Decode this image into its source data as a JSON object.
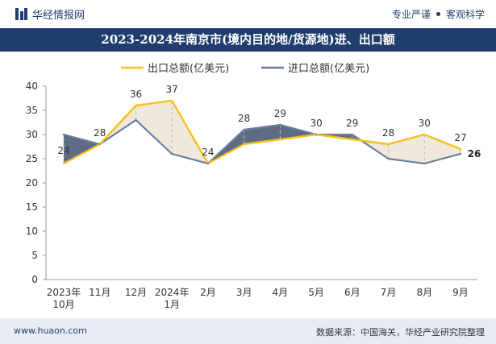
{
  "header": {
    "brand": "华经情报网",
    "tagline_left": "专业严谨",
    "tagline_right": "客观科学"
  },
  "title": "2023-2024年南京市(境内目的地/货源地)进、出口额",
  "footer": {
    "url": "www.huaon.com",
    "source": "数据来源：中国海关，华经产业研究院整理"
  },
  "colors": {
    "export": "#f5c11a",
    "import": "#6b7d9b",
    "navy": "#1f3e6e",
    "fill_dark": "#5e6b85",
    "fill_light": "#efe9dc"
  },
  "chart_data": {
    "type": "line",
    "categories": [
      "2023年\n10月",
      "11月",
      "12月",
      "2024年\n1月",
      "2月",
      "3月",
      "4月",
      "5月",
      "6月",
      "7月",
      "8月",
      "9月"
    ],
    "series": [
      {
        "name": "出口总额(亿美元)",
        "values": [
          24,
          28,
          36,
          37,
          24,
          28,
          29,
          30,
          29,
          28,
          30,
          27
        ]
      },
      {
        "name": "进口总额(亿美元)",
        "values": [
          30,
          28,
          33,
          26,
          24,
          31,
          32,
          30,
          30,
          25,
          24,
          26
        ]
      }
    ],
    "ylim": [
      0,
      40
    ],
    "yticks": [
      0,
      5,
      10,
      15,
      20,
      25,
      30,
      35,
      40
    ],
    "data_labels": [
      "24",
      "28",
      "36",
      "37",
      "24",
      "28",
      "29",
      "30",
      "29",
      "28",
      "30",
      "27"
    ],
    "last_label": "26",
    "legend_position": "top-center",
    "grid": false
  }
}
